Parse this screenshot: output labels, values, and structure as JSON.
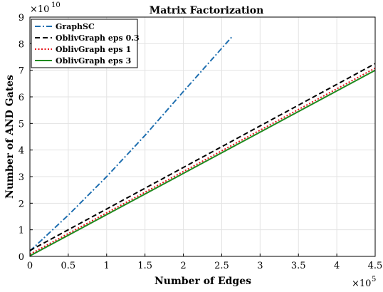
{
  "chart_data": {
    "type": "line",
    "title": "Matrix Factorization",
    "xlabel": "Number of Edges",
    "ylabel": "Number of AND Gates",
    "x_multiplier": {
      "base": "×10",
      "exp": "5"
    },
    "y_multiplier": {
      "base": "×10",
      "exp": "10"
    },
    "xlim": [
      0,
      4.5
    ],
    "ylim": [
      0,
      9
    ],
    "x_ticks": [
      "0",
      "0.5",
      "1",
      "1.5",
      "2",
      "2.5",
      "3",
      "3.5",
      "4",
      "4.5"
    ],
    "y_ticks": [
      "0",
      "1",
      "2",
      "3",
      "4",
      "5",
      "6",
      "7",
      "8",
      "9"
    ],
    "grid": true,
    "legend_position": "top-left",
    "series": [
      {
        "name": "GraphSC",
        "color": "#1f6fb0",
        "dash": "dashdot",
        "x": [
          0,
          0.5,
          1.0,
          1.5,
          2.0,
          2.63
        ],
        "y": [
          0.2,
          1.55,
          3.0,
          4.55,
          6.2,
          8.25
        ]
      },
      {
        "name": "OblivGraph eps 0.3",
        "color": "#000000",
        "dash": "dash",
        "x": [
          0,
          4.5
        ],
        "y": [
          0.22,
          7.25
        ]
      },
      {
        "name": "OblivGraph eps 1",
        "color": "#e8141b",
        "dash": "dot",
        "x": [
          0,
          4.5
        ],
        "y": [
          0.08,
          7.08
        ]
      },
      {
        "name": "OblivGraph eps 3",
        "color": "#1e8a1e",
        "dash": "solid",
        "x": [
          0,
          4.5
        ],
        "y": [
          0.02,
          7.0
        ]
      }
    ]
  }
}
